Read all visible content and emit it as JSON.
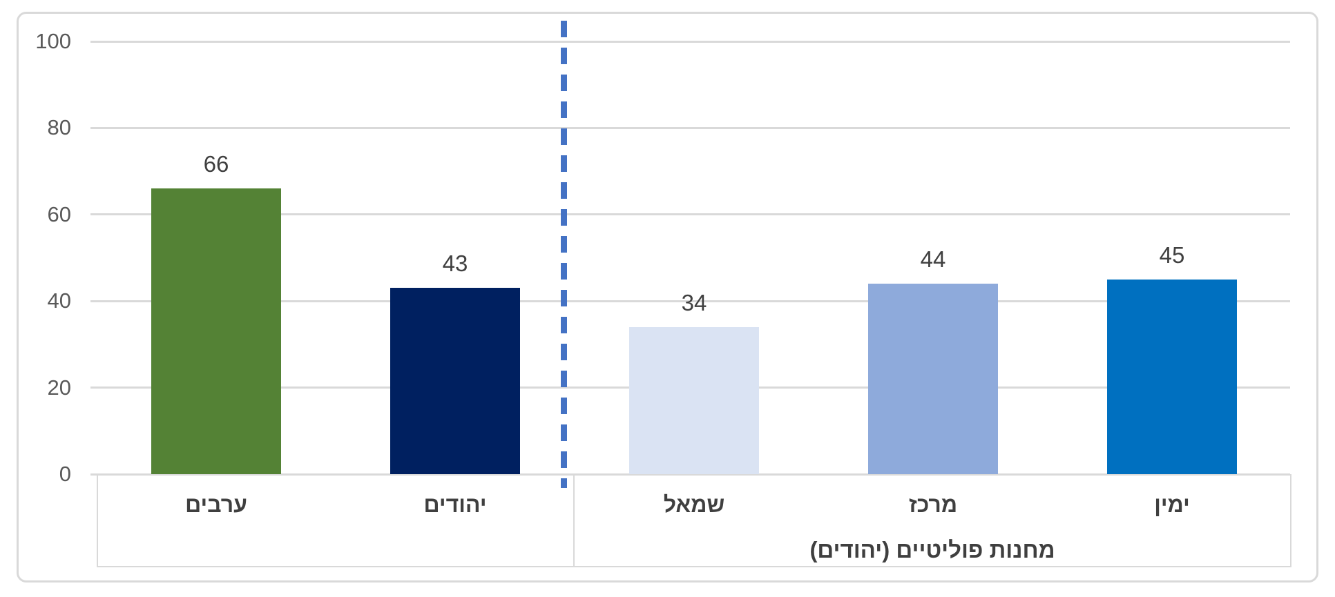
{
  "chart_data": {
    "type": "bar",
    "categories": [
      "ערבים",
      "יהודים",
      "שמאל",
      "מרכז",
      "ימין"
    ],
    "values": [
      66,
      43,
      34,
      44,
      45
    ],
    "bar_colors": [
      "#548235",
      "#002060",
      "#DAE3F3",
      "#8EAADB",
      "#0070C0"
    ],
    "data_labels": [
      "66",
      "43",
      "34",
      "44",
      "45"
    ],
    "groups": [
      {
        "label": "",
        "category_indices": [
          0,
          1
        ]
      },
      {
        "label": "מחנות פוליטיים (יהודים)",
        "category_indices": [
          2,
          3,
          4
        ]
      }
    ],
    "group_label": "מחנות פוליטיים (יהודים)",
    "title": "",
    "xlabel": "",
    "ylabel": "",
    "ylim": [
      0,
      100
    ],
    "yticks": [
      0,
      20,
      40,
      60,
      80,
      100
    ],
    "grid": true,
    "legend": "none",
    "separator_line": {
      "orientation": "vertical",
      "style": "dashed",
      "color": "#4472C4",
      "between": [
        "יהודים",
        "שמאל"
      ]
    }
  },
  "colors": {
    "gridline": "#D9D9D9",
    "frame_border": "#D9D9D9",
    "axis_tick_text": "#595959",
    "data_label_text": "#404040",
    "category_text": "#3F3F3F",
    "background": "#FFFFFF"
  }
}
